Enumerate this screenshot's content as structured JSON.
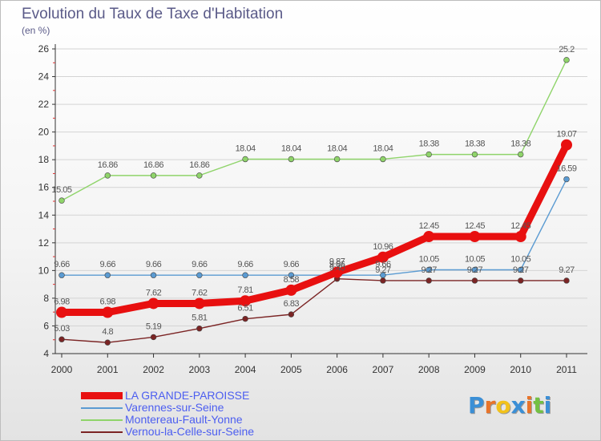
{
  "title": "Evolution du Taux de Taxe d'Habitation",
  "subtitle": "(en %)",
  "brand": {
    "text": "Proxiti",
    "letter_colors": [
      "#3b8fd6",
      "#e8742a",
      "#f2c21b",
      "#3b8fd6",
      "#e8742a",
      "#73c043",
      "#3b8fd6"
    ]
  },
  "colors": {
    "axis": "#333333",
    "grid": "#d4d4d4",
    "tick_label": "#333333",
    "data_label": "#555555"
  },
  "chart_data": {
    "type": "line",
    "x": [
      "2000",
      "2001",
      "2002",
      "2003",
      "2004",
      "2005",
      "2006",
      "2007",
      "2008",
      "2009",
      "2010",
      "2011"
    ],
    "y_ticks": [
      4,
      6,
      8,
      10,
      12,
      14,
      16,
      18,
      20,
      22,
      24,
      26
    ],
    "ylim": [
      4,
      26
    ],
    "grid": true,
    "legend_position": "bottom-left",
    "series": [
      {
        "name": "LA GRANDE-PAROISSE",
        "color": "#e81010",
        "emphasis": "thick",
        "values": [
          6.98,
          6.98,
          7.62,
          7.62,
          7.81,
          8.58,
          9.87,
          10.96,
          12.45,
          12.45,
          12.45,
          19.07
        ],
        "labels": [
          "6.98",
          "6.98",
          "7.62",
          "7.62",
          "7.81",
          "8.58",
          "9.87",
          "10.96",
          "12.45",
          "12.45",
          "12.45",
          "19.07"
        ]
      },
      {
        "name": "Varennes-sur-Seine",
        "color": "#5b9bd2",
        "emphasis": "normal",
        "values": [
          9.66,
          9.66,
          9.66,
          9.66,
          9.66,
          9.66,
          9.66,
          9.66,
          10.05,
          10.05,
          10.05,
          16.59
        ],
        "labels": [
          "9.66",
          "9.66",
          "9.66",
          "9.66",
          "9.66",
          "9.66",
          "9.66",
          "9.66",
          "10.05",
          "10.05",
          "10.05",
          "16.59"
        ]
      },
      {
        "name": "Montereau-Fault-Yonne",
        "color": "#8fd46a",
        "emphasis": "normal",
        "values": [
          15.05,
          16.86,
          16.86,
          16.86,
          18.04,
          18.04,
          18.04,
          18.04,
          18.38,
          18.38,
          18.38,
          25.2
        ],
        "labels": [
          "15.05",
          "16.86",
          "16.86",
          "16.86",
          "18.04",
          "18.04",
          "18.04",
          "18.04",
          "18.38",
          "18.38",
          "18.38",
          "25.2"
        ]
      },
      {
        "name": "Vernou-la-Celle-sur-Seine",
        "color": "#7b2424",
        "emphasis": "normal",
        "values": [
          5.03,
          4.8,
          5.19,
          5.81,
          6.51,
          6.83,
          9.4,
          9.27,
          9.27,
          9.27,
          9.27,
          9.27
        ],
        "labels": [
          "5.03",
          "4.8",
          "5.19",
          "5.81",
          "6.51",
          "6.83",
          "9.40",
          "9.27",
          "9.27",
          "9.27",
          "9.27",
          "9.27"
        ]
      }
    ]
  }
}
